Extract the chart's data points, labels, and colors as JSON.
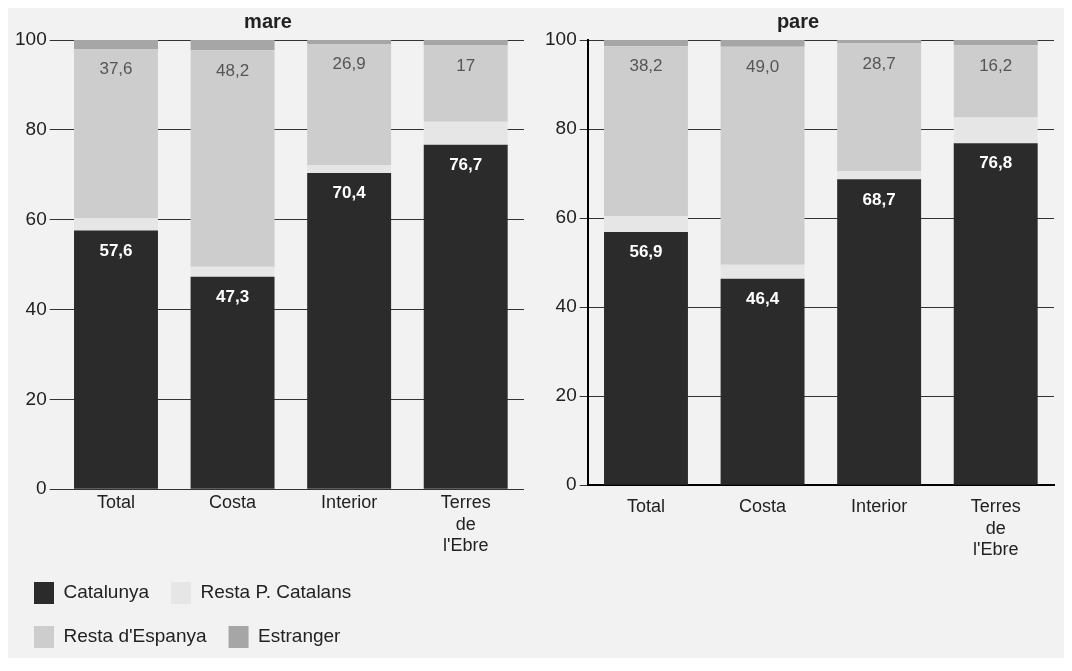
{
  "chart_data": [
    {
      "type": "bar",
      "title": "mare",
      "stacked": true,
      "categories": [
        "Total",
        "Costa",
        "Interior",
        "Terres de l'Ebre"
      ],
      "ylim": [
        0,
        100
      ],
      "yticks": [
        0,
        20,
        40,
        60,
        80,
        100
      ],
      "grid": "y",
      "legend": "bottom",
      "series": [
        {
          "name": "Catalunya",
          "color": "#2b2b2b",
          "values": [
            57.6,
            47.3,
            70.4,
            76.7
          ],
          "value_labels": [
            "57,6",
            "47,3",
            "70,4",
            "76,7"
          ]
        },
        {
          "name": "Resta P. Catalans",
          "color": "#e6e6e6",
          "values": [
            2.8,
            2.2,
            1.8,
            5.1
          ]
        },
        {
          "name": "Resta d'Espanya",
          "color": "#cdcdcd",
          "values": [
            37.6,
            48.2,
            26.9,
            17
          ],
          "value_labels": [
            "37,6",
            "48,2",
            "26,9",
            "17"
          ]
        },
        {
          "name": "Estranger",
          "color": "#a6a6a6",
          "values": [
            2.0,
            2.3,
            0.9,
            1.2
          ]
        }
      ]
    },
    {
      "type": "bar",
      "title": "pare",
      "stacked": true,
      "categories": [
        "Total",
        "Costa",
        "Interior",
        "Terres de l'Ebre"
      ],
      "ylim": [
        0,
        100
      ],
      "yticks": [
        0,
        20,
        40,
        60,
        80,
        100
      ],
      "grid": "y",
      "legend": false,
      "series": [
        {
          "color": "#2b2b2b",
          "values": [
            56.9,
            46.4,
            68.7,
            76.8
          ],
          "value_labels": [
            "56,9",
            "46,4",
            "68,7",
            "76,8"
          ]
        },
        {
          "color": "#e6e6e6",
          "values": [
            3.5,
            3.1,
            1.8,
            5.8
          ]
        },
        {
          "color": "#cdcdcd",
          "values": [
            38.2,
            49.0,
            28.7,
            16.2
          ],
          "value_labels": [
            "38,2",
            "49,0",
            "28,7",
            "16,2"
          ]
        },
        {
          "color": "#a6a6a6",
          "values": [
            1.4,
            1.5,
            0.8,
            1.2
          ]
        }
      ]
    }
  ]
}
